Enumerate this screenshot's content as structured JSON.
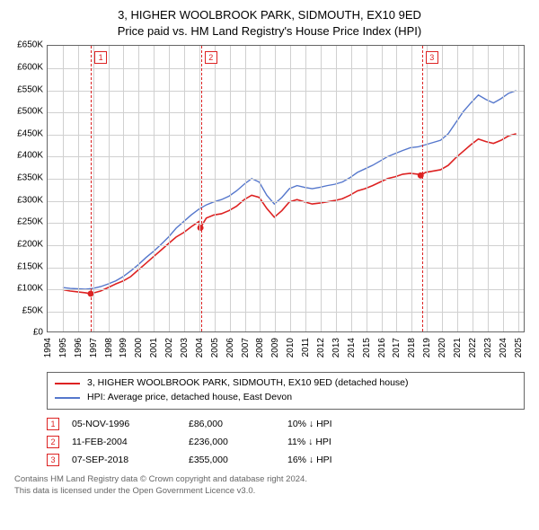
{
  "title": {
    "line1": "3, HIGHER WOOLBROOK PARK, SIDMOUTH, EX10 9ED",
    "line2": "Price paid vs. HM Land Registry's House Price Index (HPI)"
  },
  "chart": {
    "type": "line",
    "background_color": "#ffffff",
    "grid_color": "#d0d0d0",
    "border_color": "#666666",
    "xlim": [
      1994,
      2025.5
    ],
    "ylim": [
      0,
      650000
    ],
    "ytick_step": 50000,
    "y_prefix": "£",
    "y_suffix": "K",
    "x_ticks": [
      1994,
      1995,
      1996,
      1997,
      1998,
      1999,
      2000,
      2001,
      2002,
      2003,
      2004,
      2005,
      2006,
      2007,
      2008,
      2009,
      2010,
      2011,
      2012,
      2013,
      2014,
      2015,
      2016,
      2017,
      2018,
      2019,
      2020,
      2021,
      2022,
      2023,
      2024,
      2025
    ],
    "x_label_fontsize": 10,
    "y_label_fontsize": 10,
    "series": [
      {
        "name": "price_paid",
        "label": "3, HIGHER WOOLBROOK PARK, SIDMOUTH, EX10 9ED (detached house)",
        "color": "#dd2222",
        "line_width": 1.6,
        "points": [
          [
            1995.0,
            95000
          ],
          [
            1995.5,
            92000
          ],
          [
            1996.0,
            90000
          ],
          [
            1996.5,
            88000
          ],
          [
            1996.85,
            86000
          ],
          [
            1997.5,
            92000
          ],
          [
            1998.0,
            100000
          ],
          [
            1998.5,
            108000
          ],
          [
            1999.0,
            115000
          ],
          [
            1999.5,
            125000
          ],
          [
            2000.0,
            140000
          ],
          [
            2000.5,
            155000
          ],
          [
            2001.0,
            170000
          ],
          [
            2001.5,
            185000
          ],
          [
            2002.0,
            200000
          ],
          [
            2002.5,
            215000
          ],
          [
            2003.0,
            225000
          ],
          [
            2003.5,
            238000
          ],
          [
            2004.0,
            250000
          ],
          [
            2004.11,
            236000
          ],
          [
            2004.5,
            258000
          ],
          [
            2005.0,
            265000
          ],
          [
            2005.5,
            268000
          ],
          [
            2006.0,
            275000
          ],
          [
            2006.5,
            285000
          ],
          [
            2007.0,
            300000
          ],
          [
            2007.5,
            310000
          ],
          [
            2008.0,
            305000
          ],
          [
            2008.5,
            280000
          ],
          [
            2009.0,
            260000
          ],
          [
            2009.5,
            275000
          ],
          [
            2010.0,
            295000
          ],
          [
            2010.5,
            300000
          ],
          [
            2011.0,
            295000
          ],
          [
            2011.5,
            290000
          ],
          [
            2012.0,
            292000
          ],
          [
            2012.5,
            295000
          ],
          [
            2013.0,
            298000
          ],
          [
            2013.5,
            302000
          ],
          [
            2014.0,
            310000
          ],
          [
            2014.5,
            320000
          ],
          [
            2015.0,
            325000
          ],
          [
            2015.5,
            332000
          ],
          [
            2016.0,
            340000
          ],
          [
            2016.5,
            348000
          ],
          [
            2017.0,
            352000
          ],
          [
            2017.5,
            358000
          ],
          [
            2018.0,
            360000
          ],
          [
            2018.5,
            358000
          ],
          [
            2018.68,
            355000
          ],
          [
            2019.0,
            362000
          ],
          [
            2019.5,
            365000
          ],
          [
            2020.0,
            368000
          ],
          [
            2020.5,
            378000
          ],
          [
            2021.0,
            395000
          ],
          [
            2021.5,
            410000
          ],
          [
            2022.0,
            425000
          ],
          [
            2022.5,
            438000
          ],
          [
            2023.0,
            432000
          ],
          [
            2023.5,
            428000
          ],
          [
            2024.0,
            435000
          ],
          [
            2024.5,
            445000
          ],
          [
            2025.0,
            450000
          ]
        ]
      },
      {
        "name": "hpi",
        "label": "HPI: Average price, detached house, East Devon",
        "color": "#5577cc",
        "line_width": 1.4,
        "points": [
          [
            1995.0,
            100000
          ],
          [
            1995.5,
            98000
          ],
          [
            1996.0,
            97000
          ],
          [
            1996.5,
            96000
          ],
          [
            1997.0,
            98000
          ],
          [
            1997.5,
            102000
          ],
          [
            1998.0,
            108000
          ],
          [
            1998.5,
            115000
          ],
          [
            1999.0,
            125000
          ],
          [
            1999.5,
            138000
          ],
          [
            2000.0,
            152000
          ],
          [
            2000.5,
            168000
          ],
          [
            2001.0,
            182000
          ],
          [
            2001.5,
            198000
          ],
          [
            2002.0,
            215000
          ],
          [
            2002.5,
            235000
          ],
          [
            2003.0,
            250000
          ],
          [
            2003.5,
            265000
          ],
          [
            2004.0,
            278000
          ],
          [
            2004.5,
            288000
          ],
          [
            2005.0,
            295000
          ],
          [
            2005.5,
            300000
          ],
          [
            2006.0,
            308000
          ],
          [
            2006.5,
            320000
          ],
          [
            2007.0,
            335000
          ],
          [
            2007.5,
            348000
          ],
          [
            2008.0,
            340000
          ],
          [
            2008.5,
            310000
          ],
          [
            2009.0,
            290000
          ],
          [
            2009.5,
            305000
          ],
          [
            2010.0,
            325000
          ],
          [
            2010.5,
            332000
          ],
          [
            2011.0,
            328000
          ],
          [
            2011.5,
            325000
          ],
          [
            2012.0,
            328000
          ],
          [
            2012.5,
            332000
          ],
          [
            2013.0,
            335000
          ],
          [
            2013.5,
            340000
          ],
          [
            2014.0,
            350000
          ],
          [
            2014.5,
            362000
          ],
          [
            2015.0,
            370000
          ],
          [
            2015.5,
            378000
          ],
          [
            2016.0,
            388000
          ],
          [
            2016.5,
            398000
          ],
          [
            2017.0,
            405000
          ],
          [
            2017.5,
            412000
          ],
          [
            2018.0,
            418000
          ],
          [
            2018.5,
            420000
          ],
          [
            2019.0,
            425000
          ],
          [
            2019.5,
            430000
          ],
          [
            2020.0,
            435000
          ],
          [
            2020.5,
            450000
          ],
          [
            2021.0,
            475000
          ],
          [
            2021.5,
            500000
          ],
          [
            2022.0,
            520000
          ],
          [
            2022.5,
            538000
          ],
          [
            2023.0,
            528000
          ],
          [
            2023.5,
            520000
          ],
          [
            2024.0,
            530000
          ],
          [
            2024.5,
            542000
          ],
          [
            2025.0,
            548000
          ]
        ]
      }
    ],
    "sale_markers": [
      {
        "num": "1",
        "x": 1996.85,
        "y": 86000
      },
      {
        "num": "2",
        "x": 2004.11,
        "y": 236000
      },
      {
        "num": "3",
        "x": 2018.68,
        "y": 355000
      }
    ],
    "marker_radius": 3.5,
    "marker_color": "#dd2222",
    "event_line_color": "#dd2222"
  },
  "legend": {
    "entries": [
      {
        "color": "#dd2222",
        "label": "3, HIGHER WOOLBROOK PARK, SIDMOUTH, EX10 9ED (detached house)"
      },
      {
        "color": "#5577cc",
        "label": "HPI: Average price, detached house, East Devon"
      }
    ]
  },
  "events": [
    {
      "num": "1",
      "date": "05-NOV-1996",
      "price": "£86,000",
      "delta": "10% ↓ HPI"
    },
    {
      "num": "2",
      "date": "11-FEB-2004",
      "price": "£236,000",
      "delta": "11% ↓ HPI"
    },
    {
      "num": "3",
      "date": "07-SEP-2018",
      "price": "£355,000",
      "delta": "16% ↓ HPI"
    }
  ],
  "footer": {
    "line1": "Contains HM Land Registry data © Crown copyright and database right 2024.",
    "line2": "This data is licensed under the Open Government Licence v3.0."
  }
}
